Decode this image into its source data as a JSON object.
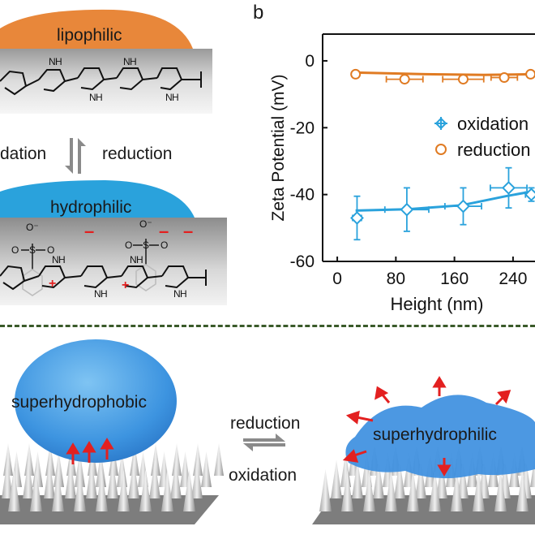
{
  "panel_a": {
    "top_label": "lipophilic",
    "switch_left": "dation",
    "switch_right": "reduction",
    "bottom_label": "hydrophilic",
    "sulfonate_o_minus": "O⁻",
    "sulfonate_s": "S",
    "sulfonate_o": "O",
    "nh_label": "N",
    "h_label": "H",
    "charge_plus": "+",
    "charge_minus": "–"
  },
  "panel_b": {
    "label": "b",
    "ylabel": "Zeta Potential (mV)",
    "xlabel": "Height (nm)",
    "y_ticks": [
      "0",
      "-20",
      "-40",
      "-60"
    ],
    "x_ticks": [
      "0",
      "80",
      "160",
      "240"
    ],
    "legend": [
      "oxidation",
      "reduction"
    ]
  },
  "chart_data": {
    "type": "scatter",
    "xlabel": "Height (nm)",
    "ylabel": "Zeta Potential (mV)",
    "xlim": [
      -20,
      270
    ],
    "ylim": [
      -60,
      8
    ],
    "y_ticks": [
      0,
      -20,
      -40,
      -60
    ],
    "x_ticks": [
      0,
      80,
      160,
      240
    ],
    "grid": false,
    "legend_position": "right",
    "series": [
      {
        "name": "oxidation",
        "color": "#2aa2dc",
        "marker": "crossed-diamond",
        "points": [
          {
            "x": 27,
            "y": -47,
            "xerr": 6,
            "yerr": 6.5
          },
          {
            "x": 95,
            "y": -44.5,
            "xerr": 30,
            "yerr": 6.5
          },
          {
            "x": 172,
            "y": -43.5,
            "xerr": 25,
            "yerr": 5.5
          },
          {
            "x": 234,
            "y": -38,
            "xerr": 25,
            "yerr": 6
          },
          {
            "x": 265,
            "y": -40,
            "xerr": 8,
            "yerr": 2
          }
        ],
        "fit": [
          [
            25,
            -44.8
          ],
          [
            95,
            -44.4
          ],
          [
            170,
            -43.2
          ],
          [
            230,
            -40.5
          ],
          [
            268,
            -39
          ]
        ]
      },
      {
        "name": "reduction",
        "color": "#e07b23",
        "marker": "open-circle",
        "points": [
          {
            "x": 25,
            "y": -4,
            "xerr": 3,
            "yerr": 0.5
          },
          {
            "x": 92,
            "y": -5.5,
            "xerr": 25,
            "yerr": 0.5
          },
          {
            "x": 172,
            "y": -5.5,
            "xerr": 28,
            "yerr": 0.8
          },
          {
            "x": 228,
            "y": -5,
            "xerr": 18,
            "yerr": 0.5
          },
          {
            "x": 264,
            "y": -4,
            "xerr": 4,
            "yerr": 0.5
          }
        ],
        "fit": [
          [
            25,
            -3.5
          ],
          [
            120,
            -4
          ],
          [
            200,
            -4.2
          ],
          [
            268,
            -4
          ]
        ]
      }
    ]
  },
  "panel_c": {
    "left_label": "superhydrophobic",
    "switch_top": "reduction",
    "switch_bottom": "oxidation",
    "right_label": "superhydrophilic"
  },
  "colors": {
    "lipophilic_drop": "#e8873a",
    "hydrophilic_drop": "#2aa2dc",
    "charge_red": "#e32020",
    "divider": "#3a5a2a",
    "arrow_gray": "#8a8a8a"
  }
}
